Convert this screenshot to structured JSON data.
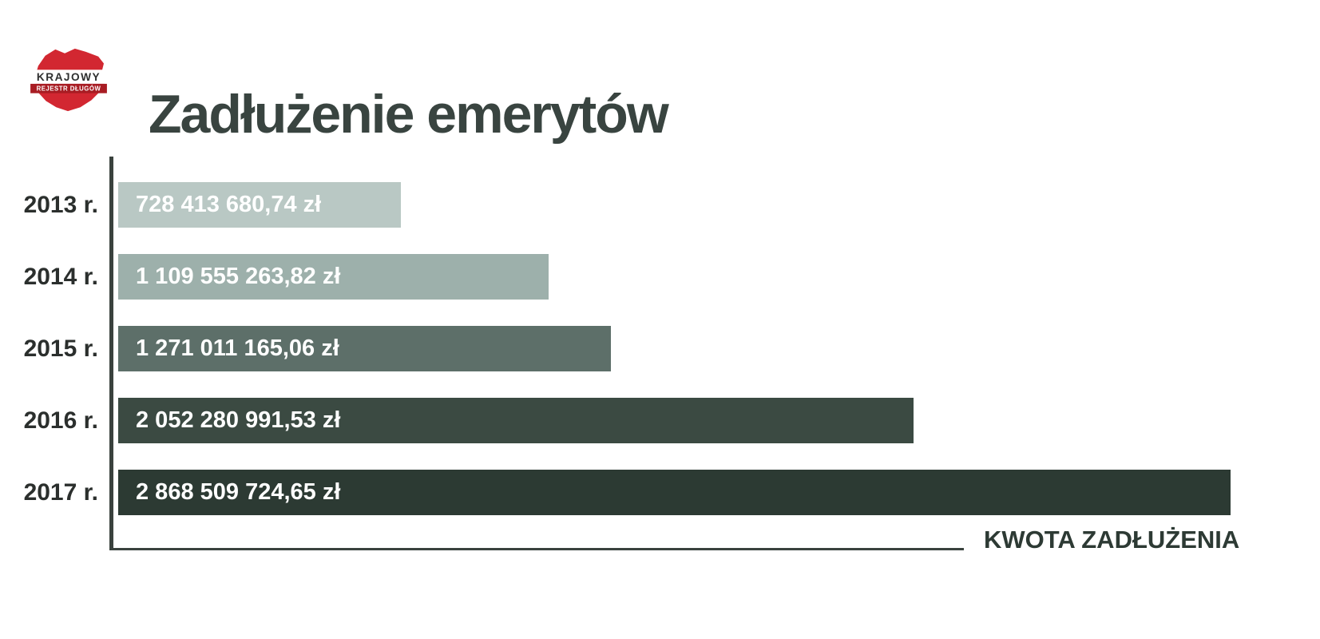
{
  "logo": {
    "line1": "KRAJOWY",
    "line2": "REJESTR DŁUGÓW"
  },
  "header": {
    "title": "Zadłużenie emerytów"
  },
  "chart_data": {
    "type": "bar",
    "orientation": "horizontal",
    "title": "Zadłużenie emerytów",
    "categories": [
      "2013 r.",
      "2014 r.",
      "2015 r.",
      "2016 r.",
      "2017 r."
    ],
    "values": [
      728413680.74,
      1109555263.82,
      1271011165.06,
      2052280991.53,
      2868509724.65
    ],
    "value_labels": [
      "728 413 680,74 zł",
      "1 109 555 263,82 zł",
      "1 271 011 165,06 zł",
      "2 052 280 991,53 zł",
      "2 868 509 724,65 zł"
    ],
    "unit": "zł",
    "bar_colors": [
      "#b9c8c4",
      "#9db0ab",
      "#5d6f69",
      "#3b4a42",
      "#2c3a33"
    ],
    "xlabel": "KWOTA ZADŁUŻENIA",
    "xlim": [
      0,
      3100000000
    ],
    "grid": false,
    "legend": false
  },
  "colors": {
    "title_text": "#394440",
    "axis": "#3a423e",
    "year_label_text": "#2b2f2d",
    "bar_value_text": "#ffffff",
    "logo_red": "#d22731",
    "logo_dark_red": "#a81c23"
  }
}
